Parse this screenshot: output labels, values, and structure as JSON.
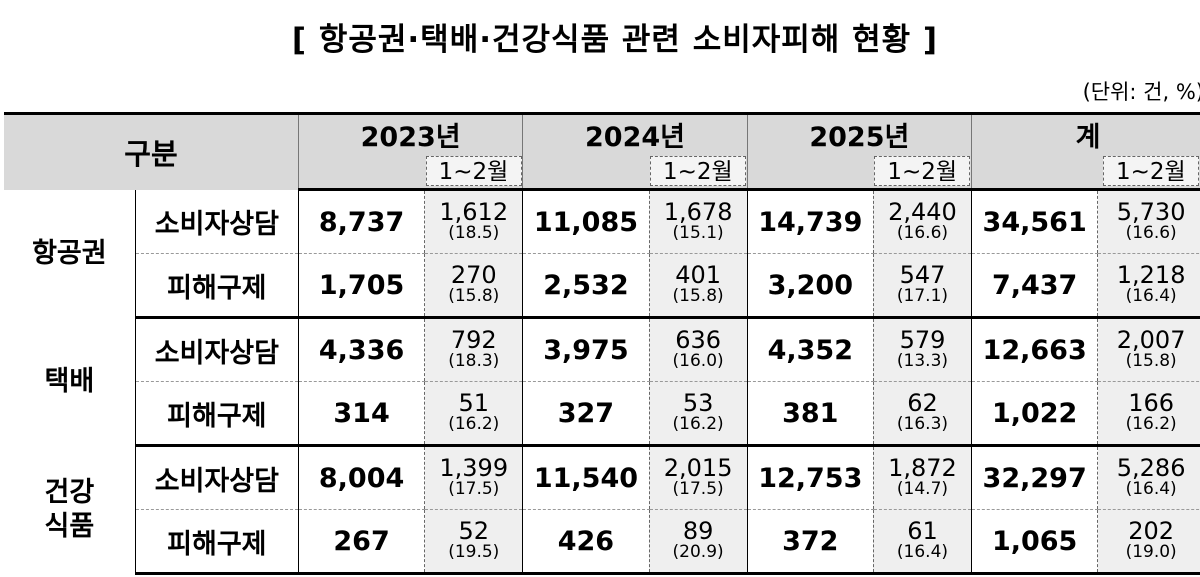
{
  "title": "[ 항공권·택배·건강식품 관련 소비자피해 현황 ]",
  "unit": "(단위: 건, %)",
  "header": {
    "gubun": "구분",
    "years": [
      "2023년",
      "2024년",
      "2025년",
      "계"
    ],
    "sub_label": "1~2월"
  },
  "categories": [
    {
      "name_lines": [
        "항공권"
      ],
      "rows": [
        {
          "type": "소비자상담",
          "cells": [
            {
              "full": "8,737",
              "part": "1,612",
              "pct": "(18.5)"
            },
            {
              "full": "11,085",
              "part": "1,678",
              "pct": "(15.1)"
            },
            {
              "full": "14,739",
              "part": "2,440",
              "pct": "(16.6)"
            },
            {
              "full": "34,561",
              "part": "5,730",
              "pct": "(16.6)"
            }
          ]
        },
        {
          "type": "피해구제",
          "cells": [
            {
              "full": "1,705",
              "part": "270",
              "pct": "(15.8)"
            },
            {
              "full": "2,532",
              "part": "401",
              "pct": "(15.8)"
            },
            {
              "full": "3,200",
              "part": "547",
              "pct": "(17.1)"
            },
            {
              "full": "7,437",
              "part": "1,218",
              "pct": "(16.4)"
            }
          ]
        }
      ]
    },
    {
      "name_lines": [
        "택배"
      ],
      "rows": [
        {
          "type": "소비자상담",
          "cells": [
            {
              "full": "4,336",
              "part": "792",
              "pct": "(18.3)"
            },
            {
              "full": "3,975",
              "part": "636",
              "pct": "(16.0)"
            },
            {
              "full": "4,352",
              "part": "579",
              "pct": "(13.3)"
            },
            {
              "full": "12,663",
              "part": "2,007",
              "pct": "(15.8)"
            }
          ]
        },
        {
          "type": "피해구제",
          "cells": [
            {
              "full": "314",
              "part": "51",
              "pct": "(16.2)"
            },
            {
              "full": "327",
              "part": "53",
              "pct": "(16.2)"
            },
            {
              "full": "381",
              "part": "62",
              "pct": "(16.3)"
            },
            {
              "full": "1,022",
              "part": "166",
              "pct": "(16.2)"
            }
          ]
        }
      ]
    },
    {
      "name_lines": [
        "건강",
        "식품"
      ],
      "rows": [
        {
          "type": "소비자상담",
          "cells": [
            {
              "full": "8,004",
              "part": "1,399",
              "pct": "(17.5)"
            },
            {
              "full": "11,540",
              "part": "2,015",
              "pct": "(17.5)"
            },
            {
              "full": "12,753",
              "part": "1,872",
              "pct": "(14.7)"
            },
            {
              "full": "32,297",
              "part": "5,286",
              "pct": "(16.4)"
            }
          ]
        },
        {
          "type": "피해구제",
          "cells": [
            {
              "full": "267",
              "part": "52",
              "pct": "(19.5)"
            },
            {
              "full": "426",
              "part": "89",
              "pct": "(20.9)"
            },
            {
              "full": "372",
              "part": "61",
              "pct": "(16.4)"
            },
            {
              "full": "1,065",
              "part": "202",
              "pct": "(19.0)"
            }
          ]
        }
      ]
    }
  ]
}
